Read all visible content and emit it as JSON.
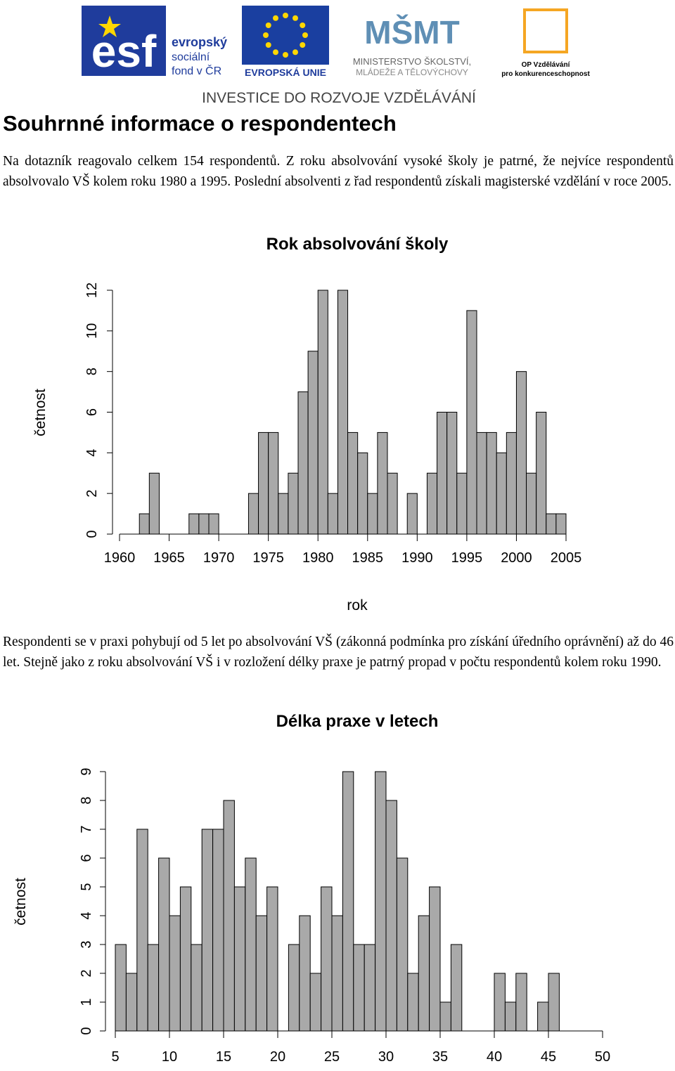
{
  "header": {
    "esf_lines": [
      "evropský",
      "sociální",
      "fond v ČR"
    ],
    "eu": "EVROPSKÁ UNIE",
    "msmt_lines": [
      "MINISTERSTVO ŠKOLSTVÍ,",
      "MLÁDEŽE A TĚLOVÝCHOVY"
    ],
    "op_lines": [
      "OP Vzdělávání",
      "pro konkurenceschopnost"
    ],
    "slogan": "INVESTICE DO ROZVOJE VZDĚLÁVÁNÍ"
  },
  "heading": "Souhrnné informace o respondentech",
  "paragraphs": [
    "Na dotazník reagovalo celkem 154 respondentů. Z roku absolvování vysoké školy je patrné, že nejvíce respondentů absolvovalo VŠ kolem roku 1980 a 1995. Poslední absolventi z řad respondentů získali magisterské vzdělání v roce 2005.",
    "Respondenti se v praxi pohybují od 5 let po absolvování VŠ (zákonná podmínka pro získání úředního oprávnění) až do 46 let. Stejně jako z roku absolvování VŠ i v rozložení délky praxe je patrný propad v počtu respondentů kolem roku 1990."
  ],
  "chart_data": [
    {
      "type": "histogram",
      "title": "Rok absolvování školy",
      "x_label": "rok",
      "y_label": "četnost",
      "color": "#a9a9a9",
      "bins": [
        1962,
        1963,
        1964,
        1965,
        1966,
        1967,
        1968,
        1969,
        1970,
        1971,
        1972,
        1973,
        1974,
        1975,
        1976,
        1977,
        1978,
        1979,
        1980,
        1981,
        1982,
        1983,
        1984,
        1985,
        1986,
        1987,
        1988,
        1989,
        1990,
        1991,
        1992,
        1993,
        1994,
        1995,
        1996,
        1997,
        1998,
        1999,
        2000,
        2001,
        2002,
        2003,
        2004,
        2005
      ],
      "values": [
        1,
        3,
        0,
        0,
        0,
        1,
        1,
        1,
        0,
        0,
        0,
        2,
        5,
        5,
        2,
        3,
        7,
        9,
        12,
        2,
        12,
        5,
        4,
        2,
        5,
        3,
        0,
        2,
        0,
        3,
        6,
        6,
        3,
        11,
        5,
        5,
        4,
        5,
        8,
        3,
        6,
        1,
        1
      ],
      "xlim": [
        1960,
        2005
      ],
      "xticks": [
        1960,
        1965,
        1970,
        1975,
        1980,
        1985,
        1990,
        1995,
        2000,
        2005
      ],
      "ylim": [
        0,
        12
      ],
      "yticks": [
        0,
        2,
        4,
        6,
        8,
        10,
        12
      ]
    },
    {
      "type": "histogram",
      "title": "Délka praxe v letech",
      "y_label": "četnost",
      "color": "#a9a9a9",
      "bins": [
        5,
        6,
        7,
        8,
        9,
        10,
        11,
        12,
        13,
        14,
        15,
        16,
        17,
        18,
        19,
        20,
        21,
        22,
        23,
        24,
        25,
        26,
        27,
        28,
        29,
        30,
        31,
        32,
        33,
        34,
        35,
        36,
        37,
        38,
        39,
        40,
        41,
        42,
        43,
        44,
        45,
        46
      ],
      "values": [
        3,
        2,
        7,
        3,
        6,
        4,
        5,
        3,
        7,
        7,
        8,
        5,
        6,
        4,
        5,
        0,
        3,
        4,
        2,
        5,
        4,
        9,
        3,
        3,
        9,
        8,
        6,
        2,
        4,
        5,
        1,
        3,
        0,
        0,
        0,
        2,
        1,
        2,
        0,
        1,
        2
      ],
      "xlim": [
        5,
        50
      ],
      "xticks": [
        5,
        10,
        15,
        20,
        25,
        30,
        35,
        40,
        45,
        50
      ],
      "ylim": [
        0,
        9
      ],
      "yticks": [
        0,
        1,
        2,
        3,
        4,
        5,
        6,
        7,
        8,
        9
      ]
    }
  ]
}
